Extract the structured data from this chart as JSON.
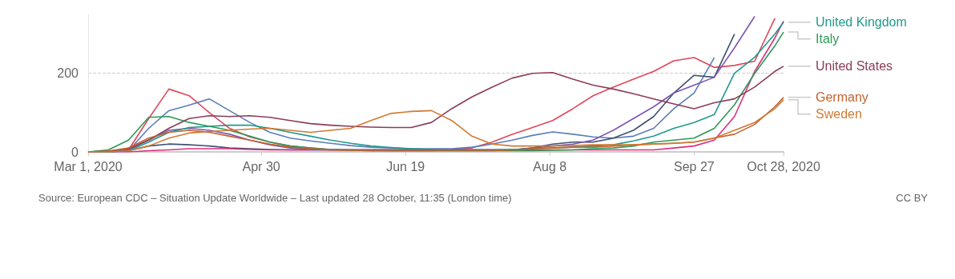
{
  "chart_data": {
    "type": "line",
    "x": [
      "2020-03-01",
      "2020-03-08",
      "2020-03-15",
      "2020-03-22",
      "2020-03-29",
      "2020-04-05",
      "2020-04-12",
      "2020-04-19",
      "2020-04-26",
      "2020-05-03",
      "2020-05-10",
      "2020-05-17",
      "2020-05-24",
      "2020-05-31",
      "2020-06-07",
      "2020-06-14",
      "2020-06-21",
      "2020-06-28",
      "2020-07-05",
      "2020-07-12",
      "2020-07-19",
      "2020-07-26",
      "2020-08-02",
      "2020-08-09",
      "2020-08-16",
      "2020-08-23",
      "2020-08-30",
      "2020-09-06",
      "2020-09-13",
      "2020-09-20",
      "2020-09-27",
      "2020-10-04",
      "2020-10-11",
      "2020-10-18",
      "2020-10-25",
      "2020-10-28"
    ],
    "series": [
      {
        "color": "#e0475a",
        "values": [
          0,
          0,
          5,
          85,
          160,
          143,
          100,
          60,
          38,
          25,
          15,
          10,
          6,
          5,
          4,
          3,
          3,
          3,
          5,
          10,
          25,
          45,
          62,
          80,
          110,
          143,
          165,
          185,
          205,
          232,
          240,
          215,
          220,
          231,
          340,
          null
        ]
      },
      {
        "color": "#5a7db8",
        "values": [
          0,
          0,
          3,
          60,
          105,
          119,
          135,
          105,
          75,
          50,
          35,
          28,
          22,
          16,
          12,
          10,
          8,
          8,
          8,
          12,
          20,
          30,
          42,
          51,
          45,
          38,
          35,
          40,
          60,
          110,
          150,
          240,
          null,
          null,
          null,
          null
        ]
      },
      {
        "color": "#3f5170",
        "values": [
          0,
          0,
          3,
          15,
          20,
          18,
          15,
          10,
          8,
          6,
          5,
          5,
          5,
          5,
          5,
          5,
          5,
          5,
          5,
          5,
          5,
          5,
          10,
          20,
          25,
          25,
          35,
          55,
          90,
          150,
          195,
          190,
          300,
          null,
          null,
          null
        ]
      },
      {
        "color": "#d9307f",
        "values": [
          0,
          0,
          0,
          3,
          5,
          8,
          8,
          8,
          6,
          5,
          5,
          5,
          5,
          5,
          5,
          5,
          5,
          5,
          5,
          5,
          5,
          5,
          5,
          5,
          5,
          5,
          5,
          5,
          5,
          10,
          15,
          30,
          90,
          205,
          290,
          333
        ]
      },
      {
        "color": "#7c55b5",
        "values": [
          0,
          0,
          5,
          30,
          55,
          60,
          55,
          45,
          30,
          18,
          10,
          6,
          5,
          5,
          5,
          5,
          5,
          5,
          5,
          5,
          5,
          5,
          10,
          15,
          20,
          30,
          55,
          85,
          115,
          150,
          170,
          190,
          265,
          345,
          null,
          null
        ]
      },
      {
        "name": "United Kingdom",
        "color": "#1f9a8a",
        "values": [
          0,
          0,
          3,
          25,
          50,
          62,
          65,
          68,
          68,
          60,
          50,
          40,
          30,
          22,
          15,
          11,
          8,
          6,
          5,
          5,
          5,
          6,
          8,
          10,
          12,
          15,
          18,
          28,
          40,
          60,
          75,
          95,
          200,
          241,
          300,
          330
        ]
      },
      {
        "name": "Italy",
        "color": "#2d9a55",
        "values": [
          0,
          5,
          30,
          88,
          90,
          75,
          65,
          55,
          40,
          25,
          15,
          10,
          6,
          4,
          3,
          3,
          3,
          3,
          3,
          3,
          3,
          3,
          3,
          4,
          5,
          8,
          10,
          15,
          25,
          30,
          35,
          60,
          120,
          200,
          270,
          305
        ]
      },
      {
        "name": "United States",
        "color": "#8c3b58",
        "values": [
          0,
          2,
          8,
          30,
          60,
          85,
          92,
          90,
          92,
          88,
          80,
          72,
          68,
          65,
          63,
          62,
          62,
          75,
          110,
          140,
          165,
          188,
          200,
          202,
          185,
          170,
          160,
          148,
          135,
          122,
          110,
          125,
          135,
          165,
          205,
          218
        ]
      },
      {
        "name": "Germany",
        "color": "#c4622d",
        "values": [
          0,
          2,
          10,
          35,
          50,
          55,
          50,
          40,
          30,
          20,
          12,
          8,
          5,
          4,
          3,
          3,
          3,
          3,
          3,
          3,
          3,
          5,
          8,
          10,
          12,
          12,
          15,
          18,
          20,
          22,
          25,
          35,
          45,
          70,
          115,
          139
        ]
      },
      {
        "name": "Sweden",
        "color": "#cf7a33",
        "values": [
          0,
          0,
          3,
          15,
          35,
          48,
          52,
          55,
          58,
          60,
          55,
          50,
          55,
          60,
          80,
          98,
          103,
          105,
          80,
          40,
          20,
          15,
          15,
          15,
          16,
          18,
          18,
          18,
          20,
          22,
          25,
          35,
          55,
          75,
          110,
          133
        ]
      }
    ],
    "xlim": [
      "2020-03-01",
      "2020-10-28"
    ],
    "xticks": [
      {
        "value": "2020-03-01",
        "label": "Mar 1, 2020"
      },
      {
        "value": "2020-04-30",
        "label": "Apr 30"
      },
      {
        "value": "2020-06-19",
        "label": "Jun 19"
      },
      {
        "value": "2020-08-08",
        "label": "Aug 8"
      },
      {
        "value": "2020-09-27",
        "label": "Sep 27"
      },
      {
        "value": "2020-10-28",
        "label": "Oct 28, 2020"
      }
    ],
    "ylim": [
      0,
      350
    ],
    "yticks": [
      0,
      200
    ],
    "grid": "y",
    "annotations": [
      "Source: European CDC – Situation Update Worldwide – Last updated 28 October, 11:35 (London time)",
      "CC BY"
    ]
  }
}
